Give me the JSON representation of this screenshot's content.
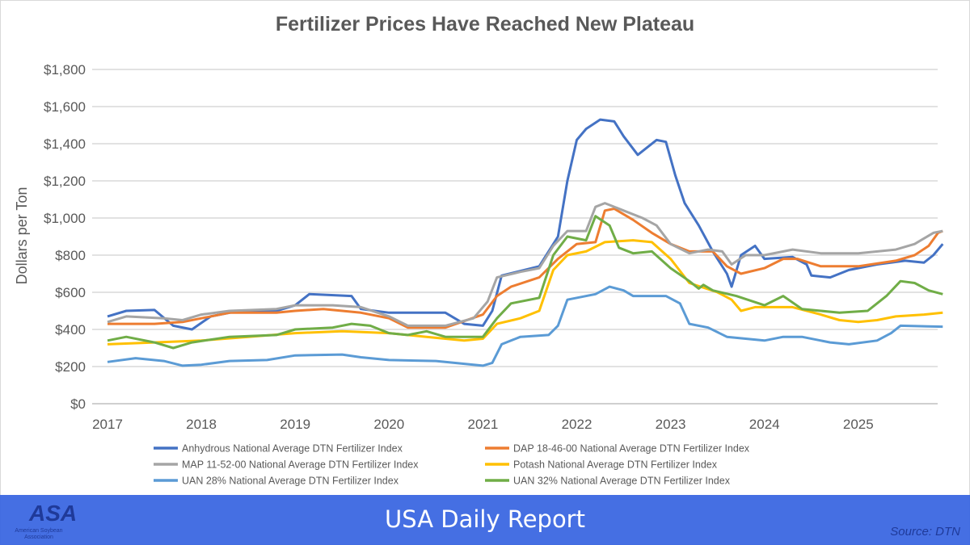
{
  "chart_data": {
    "type": "line",
    "title": "Fertilizer Prices Have Reached New Plateau",
    "ylabel": "Dollars per Ton",
    "xlabel": "",
    "xlim": [
      2017,
      2025.9
    ],
    "ylim": [
      0,
      1800
    ],
    "x_ticks": [
      "2017",
      "2018",
      "2019",
      "2020",
      "2021",
      "2022",
      "2023",
      "2024",
      "2025"
    ],
    "y_ticks": [
      "$0",
      "$200",
      "$400",
      "$600",
      "$800",
      "$1,000",
      "$1,200",
      "$1,400",
      "$1,600",
      "$1,800"
    ],
    "grid": "horizontal",
    "legend_position": "bottom",
    "series": [
      {
        "name": "Anhydrous National Average DTN Fertilizer Index",
        "color": "#4472C4",
        "points": [
          [
            2017,
            470
          ],
          [
            2017.2,
            500
          ],
          [
            2017.5,
            505
          ],
          [
            2017.7,
            420
          ],
          [
            2017.9,
            400
          ],
          [
            2018.1,
            470
          ],
          [
            2018.4,
            500
          ],
          [
            2018.8,
            500
          ],
          [
            2019,
            530
          ],
          [
            2019.15,
            590
          ],
          [
            2019.6,
            580
          ],
          [
            2019.7,
            510
          ],
          [
            2020,
            490
          ],
          [
            2020.6,
            490
          ],
          [
            2020.8,
            430
          ],
          [
            2021,
            420
          ],
          [
            2021.1,
            500
          ],
          [
            2021.2,
            690
          ],
          [
            2021.6,
            740
          ],
          [
            2021.8,
            900
          ],
          [
            2021.9,
            1200
          ],
          [
            2022,
            1420
          ],
          [
            2022.1,
            1480
          ],
          [
            2022.25,
            1530
          ],
          [
            2022.4,
            1520
          ],
          [
            2022.5,
            1440
          ],
          [
            2022.65,
            1340
          ],
          [
            2022.85,
            1420
          ],
          [
            2022.95,
            1410
          ],
          [
            2023.05,
            1230
          ],
          [
            2023.15,
            1080
          ],
          [
            2023.3,
            960
          ],
          [
            2023.45,
            820
          ],
          [
            2023.6,
            700
          ],
          [
            2023.65,
            630
          ],
          [
            2023.75,
            800
          ],
          [
            2023.9,
            850
          ],
          [
            2024,
            780
          ],
          [
            2024.3,
            790
          ],
          [
            2024.45,
            750
          ],
          [
            2024.5,
            690
          ],
          [
            2024.7,
            680
          ],
          [
            2024.9,
            720
          ],
          [
            2025.2,
            750
          ],
          [
            2025.5,
            770
          ],
          [
            2025.7,
            760
          ],
          [
            2025.8,
            800
          ],
          [
            2025.9,
            860
          ]
        ]
      },
      {
        "name": "DAP 18-46-00 National Average DTN Fertilizer Index",
        "color": "#ED7D31",
        "points": [
          [
            2017,
            430
          ],
          [
            2017.5,
            430
          ],
          [
            2017.8,
            440
          ],
          [
            2018,
            460
          ],
          [
            2018.3,
            490
          ],
          [
            2018.8,
            490
          ],
          [
            2019,
            500
          ],
          [
            2019.3,
            510
          ],
          [
            2019.7,
            490
          ],
          [
            2020,
            460
          ],
          [
            2020.2,
            410
          ],
          [
            2020.6,
            410
          ],
          [
            2021,
            480
          ],
          [
            2021.15,
            580
          ],
          [
            2021.3,
            630
          ],
          [
            2021.6,
            680
          ],
          [
            2021.8,
            780
          ],
          [
            2022,
            860
          ],
          [
            2022.2,
            870
          ],
          [
            2022.3,
            1040
          ],
          [
            2022.4,
            1050
          ],
          [
            2022.6,
            990
          ],
          [
            2022.8,
            920
          ],
          [
            2023,
            860
          ],
          [
            2023.2,
            820
          ],
          [
            2023.45,
            820
          ],
          [
            2023.6,
            740
          ],
          [
            2023.75,
            700
          ],
          [
            2024,
            730
          ],
          [
            2024.2,
            780
          ],
          [
            2024.35,
            780
          ],
          [
            2024.6,
            740
          ],
          [
            2025,
            740
          ],
          [
            2025.4,
            770
          ],
          [
            2025.6,
            800
          ],
          [
            2025.75,
            850
          ],
          [
            2025.85,
            920
          ],
          [
            2025.9,
            930
          ]
        ]
      },
      {
        "name": "MAP 11-52-00 National Average DTN Fertilizer Index",
        "color": "#A5A5A5",
        "points": [
          [
            2017,
            440
          ],
          [
            2017.2,
            470
          ],
          [
            2017.6,
            460
          ],
          [
            2017.8,
            450
          ],
          [
            2018,
            480
          ],
          [
            2018.3,
            500
          ],
          [
            2018.8,
            510
          ],
          [
            2019,
            530
          ],
          [
            2019.4,
            530
          ],
          [
            2019.7,
            520
          ],
          [
            2020,
            470
          ],
          [
            2020.2,
            420
          ],
          [
            2020.6,
            420
          ],
          [
            2020.9,
            460
          ],
          [
            2021.05,
            550
          ],
          [
            2021.15,
            680
          ],
          [
            2021.4,
            710
          ],
          [
            2021.6,
            730
          ],
          [
            2021.75,
            850
          ],
          [
            2021.9,
            930
          ],
          [
            2022.1,
            930
          ],
          [
            2022.2,
            1060
          ],
          [
            2022.3,
            1080
          ],
          [
            2022.5,
            1040
          ],
          [
            2022.7,
            1000
          ],
          [
            2022.85,
            960
          ],
          [
            2023,
            860
          ],
          [
            2023.2,
            810
          ],
          [
            2023.4,
            830
          ],
          [
            2023.55,
            820
          ],
          [
            2023.65,
            750
          ],
          [
            2023.8,
            800
          ],
          [
            2024,
            800
          ],
          [
            2024.3,
            830
          ],
          [
            2024.6,
            810
          ],
          [
            2025,
            810
          ],
          [
            2025.4,
            830
          ],
          [
            2025.6,
            860
          ],
          [
            2025.8,
            920
          ],
          [
            2025.9,
            930
          ]
        ]
      },
      {
        "name": "Potash National Average DTN Fertilizer Index",
        "color": "#FFC000",
        "points": [
          [
            2017,
            320
          ],
          [
            2017.5,
            330
          ],
          [
            2018,
            340
          ],
          [
            2018.5,
            360
          ],
          [
            2019,
            380
          ],
          [
            2019.5,
            390
          ],
          [
            2020,
            380
          ],
          [
            2020.4,
            360
          ],
          [
            2020.8,
            340
          ],
          [
            2021,
            350
          ],
          [
            2021.15,
            430
          ],
          [
            2021.4,
            460
          ],
          [
            2021.6,
            500
          ],
          [
            2021.75,
            720
          ],
          [
            2021.9,
            800
          ],
          [
            2022.1,
            820
          ],
          [
            2022.3,
            870
          ],
          [
            2022.6,
            880
          ],
          [
            2022.8,
            870
          ],
          [
            2023,
            780
          ],
          [
            2023.2,
            650
          ],
          [
            2023.5,
            600
          ],
          [
            2023.65,
            560
          ],
          [
            2023.75,
            500
          ],
          [
            2023.9,
            520
          ],
          [
            2024.3,
            520
          ],
          [
            2024.6,
            480
          ],
          [
            2024.8,
            450
          ],
          [
            2025,
            440
          ],
          [
            2025.2,
            450
          ],
          [
            2025.4,
            470
          ],
          [
            2025.7,
            480
          ],
          [
            2025.9,
            490
          ]
        ]
      },
      {
        "name": "UAN 28% National Average DTN Fertilizer Index",
        "color": "#5B9BD5",
        "points": [
          [
            2017,
            225
          ],
          [
            2017.3,
            245
          ],
          [
            2017.6,
            230
          ],
          [
            2017.8,
            205
          ],
          [
            2018,
            210
          ],
          [
            2018.3,
            230
          ],
          [
            2018.7,
            235
          ],
          [
            2019,
            260
          ],
          [
            2019.5,
            265
          ],
          [
            2019.7,
            250
          ],
          [
            2020,
            235
          ],
          [
            2020.5,
            230
          ],
          [
            2020.9,
            210
          ],
          [
            2021,
            205
          ],
          [
            2021.1,
            220
          ],
          [
            2021.2,
            320
          ],
          [
            2021.4,
            360
          ],
          [
            2021.7,
            370
          ],
          [
            2021.8,
            420
          ],
          [
            2021.9,
            560
          ],
          [
            2022.2,
            590
          ],
          [
            2022.35,
            630
          ],
          [
            2022.5,
            610
          ],
          [
            2022.6,
            580
          ],
          [
            2022.95,
            580
          ],
          [
            2023.1,
            540
          ],
          [
            2023.2,
            430
          ],
          [
            2023.4,
            410
          ],
          [
            2023.6,
            360
          ],
          [
            2023.8,
            350
          ],
          [
            2024,
            340
          ],
          [
            2024.2,
            360
          ],
          [
            2024.4,
            360
          ],
          [
            2024.7,
            330
          ],
          [
            2024.9,
            320
          ],
          [
            2025.2,
            340
          ],
          [
            2025.35,
            380
          ],
          [
            2025.45,
            420
          ],
          [
            2025.9,
            415
          ]
        ]
      },
      {
        "name": "UAN 32% National Average DTN Fertilizer Index",
        "color": "#70AD47",
        "points": [
          [
            2017,
            340
          ],
          [
            2017.2,
            360
          ],
          [
            2017.5,
            330
          ],
          [
            2017.7,
            300
          ],
          [
            2017.9,
            330
          ],
          [
            2018.3,
            360
          ],
          [
            2018.8,
            370
          ],
          [
            2019,
            400
          ],
          [
            2019.4,
            410
          ],
          [
            2019.6,
            430
          ],
          [
            2019.8,
            420
          ],
          [
            2020,
            380
          ],
          [
            2020.2,
            370
          ],
          [
            2020.4,
            390
          ],
          [
            2020.6,
            360
          ],
          [
            2021,
            360
          ],
          [
            2021.15,
            460
          ],
          [
            2021.3,
            540
          ],
          [
            2021.6,
            570
          ],
          [
            2021.75,
            800
          ],
          [
            2021.9,
            900
          ],
          [
            2022.1,
            880
          ],
          [
            2022.2,
            1010
          ],
          [
            2022.35,
            960
          ],
          [
            2022.45,
            840
          ],
          [
            2022.6,
            810
          ],
          [
            2022.8,
            820
          ],
          [
            2023,
            730
          ],
          [
            2023.2,
            660
          ],
          [
            2023.3,
            620
          ],
          [
            2023.35,
            640
          ],
          [
            2023.45,
            610
          ],
          [
            2023.7,
            580
          ],
          [
            2024,
            530
          ],
          [
            2024.2,
            580
          ],
          [
            2024.4,
            510
          ],
          [
            2024.6,
            500
          ],
          [
            2024.8,
            490
          ],
          [
            2025.1,
            500
          ],
          [
            2025.3,
            580
          ],
          [
            2025.45,
            660
          ],
          [
            2025.6,
            650
          ],
          [
            2025.75,
            610
          ],
          [
            2025.9,
            590
          ]
        ]
      }
    ]
  },
  "banner": {
    "title": "USA Daily Report",
    "source": "Source: DTN",
    "logo_text": "ASA",
    "logo_subtext": "American Soybean Association",
    "color": "#3764E1"
  }
}
